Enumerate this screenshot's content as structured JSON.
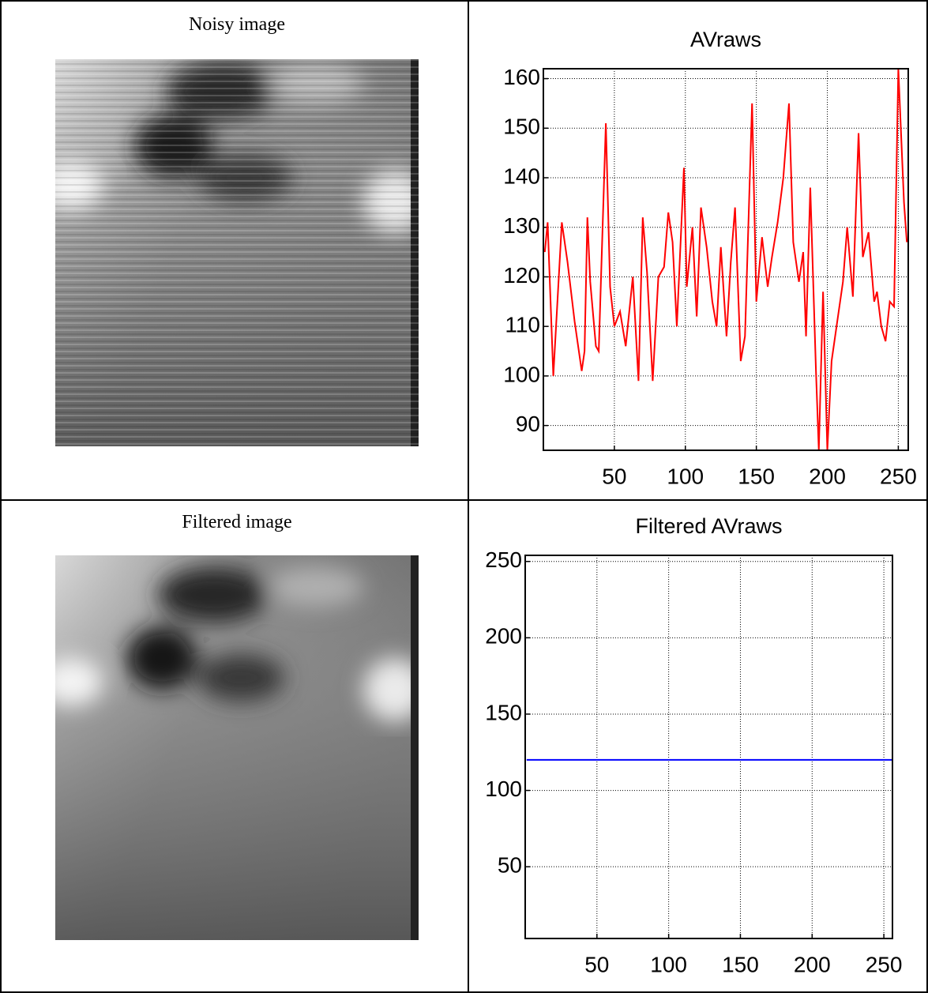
{
  "images": [
    {
      "caption": "Noisy image"
    },
    {
      "caption": "Filtered image"
    }
  ],
  "chart_data": [
    {
      "type": "line",
      "title": "AVraws",
      "color": "#ff0000",
      "grid": true,
      "x": [
        1,
        3,
        7,
        13,
        17,
        22,
        27,
        29,
        31,
        33,
        37,
        39,
        44,
        47,
        50,
        54,
        58,
        63,
        67,
        70,
        73,
        77,
        81,
        85,
        88,
        91,
        94,
        99,
        101,
        105,
        108,
        111,
        115,
        119,
        122,
        125,
        129,
        132,
        135,
        139,
        142,
        147,
        150,
        154,
        158,
        161,
        165,
        169,
        173,
        176,
        180,
        183,
        185,
        188,
        192,
        194,
        197,
        200,
        203,
        207,
        211,
        214,
        218,
        222,
        225,
        229,
        233,
        235,
        238,
        241,
        244,
        247,
        250,
        254,
        256
      ],
      "values": [
        125,
        131,
        100,
        131,
        123,
        111,
        101,
        105,
        132,
        119,
        106,
        105,
        151,
        118,
        110,
        113,
        106,
        120,
        99,
        132,
        121,
        99,
        120,
        122,
        133,
        127,
        110,
        142,
        118,
        130,
        112,
        134,
        126,
        115,
        110,
        126,
        108,
        123,
        134,
        103,
        108,
        155,
        115,
        128,
        118,
        124,
        131,
        140,
        155,
        127,
        119,
        125,
        108,
        138,
        101,
        85,
        117,
        85,
        103,
        111,
        119,
        130,
        116,
        149,
        124,
        129,
        115,
        117,
        110,
        107,
        115,
        114,
        162,
        135,
        127
      ],
      "xlim": [
        0,
        257
      ],
      "ylim": [
        85,
        162
      ],
      "xticks": [
        50,
        100,
        150,
        200,
        250
      ],
      "yticks": [
        90,
        100,
        110,
        120,
        130,
        140,
        150,
        160
      ]
    },
    {
      "type": "line",
      "title": "Filtered AVraws",
      "color": "#0000ff",
      "grid": true,
      "x": [
        1,
        256
      ],
      "values": [
        120,
        120
      ],
      "xlim": [
        0,
        256
      ],
      "ylim": [
        3,
        254
      ],
      "xticks": [
        50,
        100,
        150,
        200,
        250
      ],
      "yticks": [
        50,
        100,
        150,
        200,
        250
      ]
    }
  ]
}
